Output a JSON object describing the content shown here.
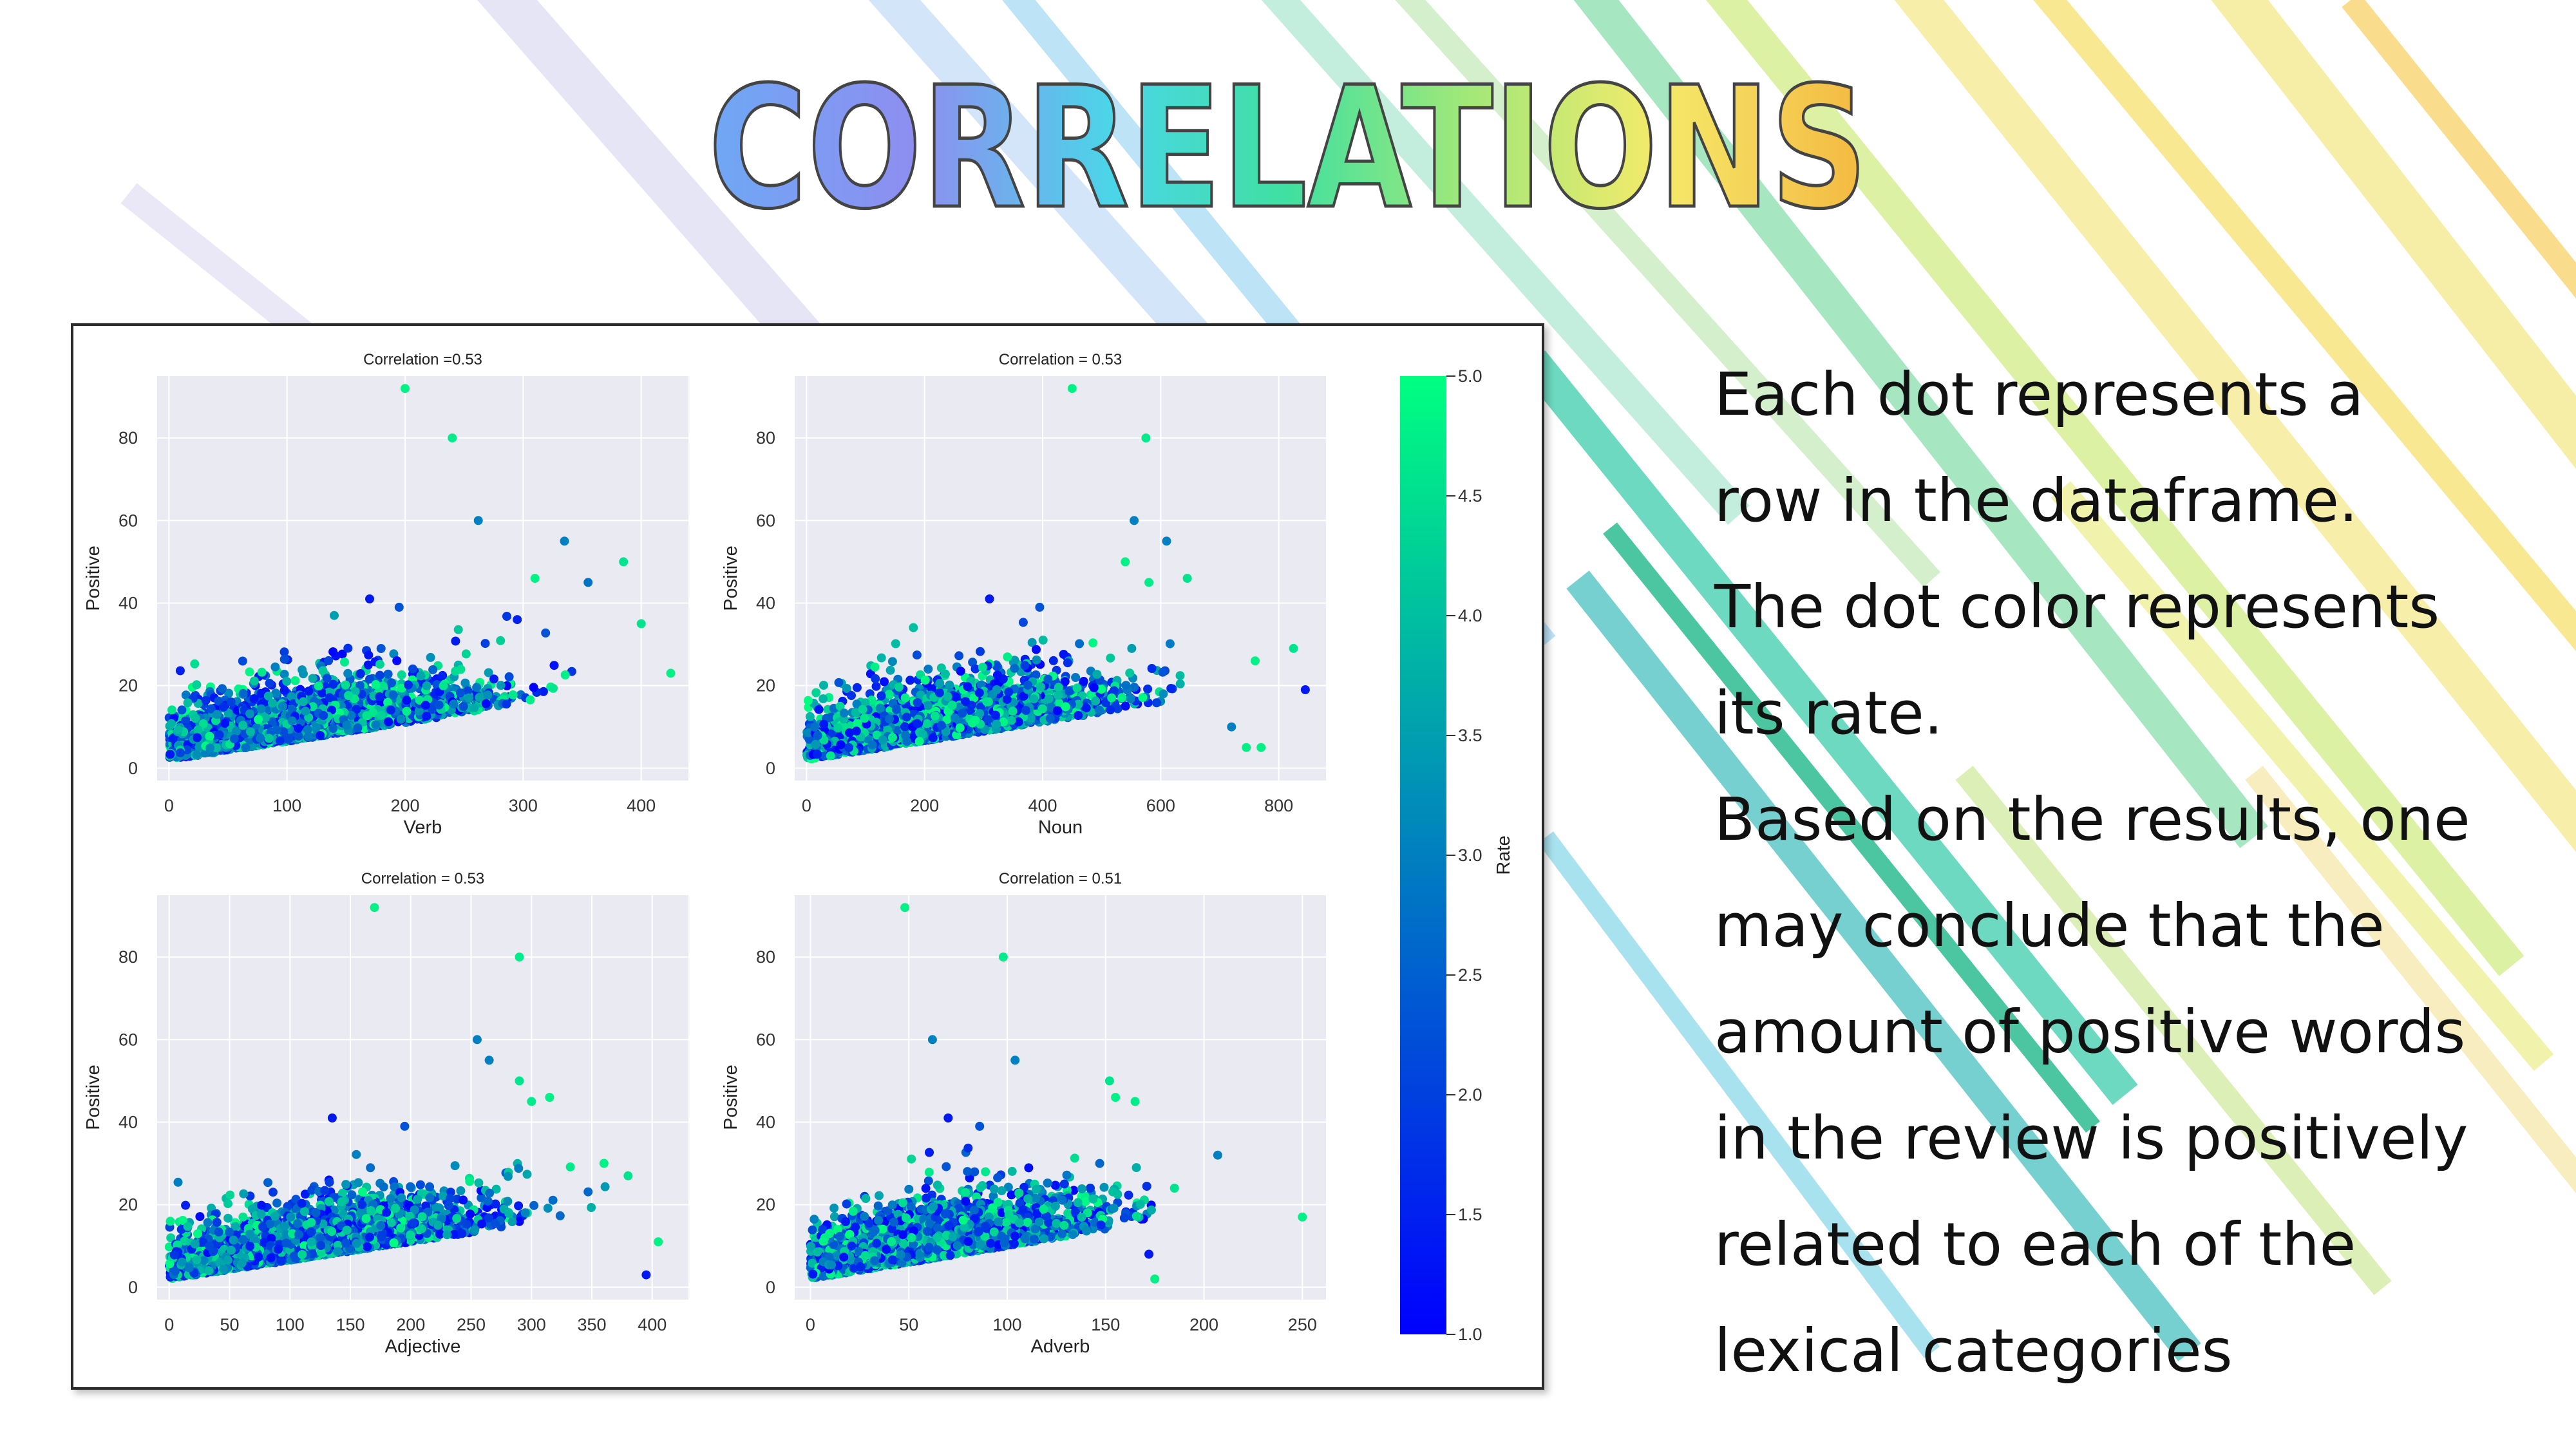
{
  "slide": {
    "title": "CORRELATIONS",
    "description_lines": [
      "Each dot represents a",
      "row in the dataframe.",
      "The dot color represents",
      "its rate.",
      "Based on the results, one",
      "may conclude that the",
      "amount of positive words",
      "in the review is positively",
      "related to each of the",
      "lexical categories"
    ]
  },
  "chart_data": [
    {
      "type": "scatter",
      "title": "Correlation =0.53",
      "xlabel": "Verb",
      "ylabel": "Positive",
      "xlim": [
        -10,
        440
      ],
      "ylim": [
        -3,
        95
      ],
      "xticks": [
        0,
        100,
        200,
        300,
        400
      ],
      "yticks": [
        0,
        20,
        40,
        60,
        80
      ],
      "grid": true,
      "outliers": [
        [
          200,
          92,
          4.8
        ],
        [
          240,
          80,
          4.7
        ],
        [
          262,
          60,
          3.0
        ],
        [
          335,
          55,
          3.0
        ],
        [
          355,
          45,
          2.8
        ],
        [
          385,
          50,
          4.6
        ],
        [
          310,
          46,
          4.8
        ],
        [
          400,
          35,
          4.6
        ],
        [
          425,
          23,
          4.8
        ],
        [
          295,
          36,
          1.5
        ],
        [
          170,
          41,
          1.4
        ],
        [
          195,
          39,
          2.3
        ],
        [
          140,
          37,
          3.5
        ]
      ],
      "cluster": {
        "count": 2600,
        "x_mean": 120,
        "x_sd": 70,
        "x_max": 420,
        "y_base": 2,
        "y_per_x": 0.045,
        "y_sd": 5,
        "seed": 11
      }
    },
    {
      "type": "scatter",
      "title": "Correlation = 0.53",
      "xlabel": "Noun",
      "ylabel": "Positive",
      "xlim": [
        -20,
        880
      ],
      "ylim": [
        -3,
        95
      ],
      "xticks": [
        0,
        200,
        400,
        600,
        800
      ],
      "yticks": [
        0,
        20,
        40,
        60,
        80
      ],
      "grid": true,
      "outliers": [
        [
          450,
          92,
          4.8
        ],
        [
          575,
          80,
          4.7
        ],
        [
          555,
          60,
          3.0
        ],
        [
          610,
          55,
          3.0
        ],
        [
          645,
          46,
          4.6
        ],
        [
          540,
          50,
          4.8
        ],
        [
          580,
          45,
          4.7
        ],
        [
          760,
          26,
          4.8
        ],
        [
          825,
          29,
          4.6
        ],
        [
          845,
          19,
          1.4
        ],
        [
          310,
          41,
          1.4
        ],
        [
          395,
          39,
          2.3
        ],
        [
          770,
          5,
          4.8
        ],
        [
          745,
          5,
          4.8
        ],
        [
          720,
          10,
          3.0
        ]
      ],
      "cluster": {
        "count": 2600,
        "x_mean": 230,
        "x_sd": 135,
        "x_max": 800,
        "y_base": 2,
        "y_per_x": 0.023,
        "y_sd": 5,
        "seed": 23
      }
    },
    {
      "type": "scatter",
      "title": "Correlation = 0.53",
      "xlabel": "Adjective",
      "ylabel": "Positive",
      "xlim": [
        -10,
        430
      ],
      "ylim": [
        -3,
        95
      ],
      "xticks": [
        0,
        50,
        100,
        150,
        200,
        250,
        300,
        350,
        400
      ],
      "yticks": [
        0,
        20,
        40,
        60,
        80
      ],
      "grid": true,
      "outliers": [
        [
          170,
          92,
          4.8
        ],
        [
          290,
          80,
          4.7
        ],
        [
          255,
          60,
          3.0
        ],
        [
          265,
          55,
          3.0
        ],
        [
          290,
          50,
          4.6
        ],
        [
          315,
          46,
          4.8
        ],
        [
          300,
          45,
          4.7
        ],
        [
          360,
          30,
          4.8
        ],
        [
          380,
          27,
          4.6
        ],
        [
          405,
          11,
          4.8
        ],
        [
          135,
          41,
          1.4
        ],
        [
          195,
          39,
          2.3
        ],
        [
          395,
          3,
          1.4
        ]
      ],
      "cluster": {
        "count": 2600,
        "x_mean": 115,
        "x_sd": 70,
        "x_max": 400,
        "y_base": 2,
        "y_per_x": 0.045,
        "y_sd": 5,
        "seed": 37
      }
    },
    {
      "type": "scatter",
      "title": "Correlation = 0.51",
      "xlabel": "Adverb",
      "ylabel": "Positive",
      "xlim": [
        -8,
        262
      ],
      "ylim": [
        -3,
        95
      ],
      "xticks": [
        0,
        50,
        100,
        150,
        200,
        250
      ],
      "yticks": [
        0,
        20,
        40,
        60,
        80
      ],
      "grid": true,
      "outliers": [
        [
          48,
          92,
          4.8
        ],
        [
          98,
          80,
          4.7
        ],
        [
          62,
          60,
          3.0
        ],
        [
          104,
          55,
          3.0
        ],
        [
          152,
          50,
          4.6
        ],
        [
          155,
          46,
          4.8
        ],
        [
          165,
          45,
          4.7
        ],
        [
          207,
          32,
          3.0
        ],
        [
          250,
          17,
          4.8
        ],
        [
          185,
          24,
          4.6
        ],
        [
          70,
          41,
          1.4
        ],
        [
          86,
          39,
          2.3
        ],
        [
          175,
          2,
          4.8
        ],
        [
          172,
          8,
          1.4
        ]
      ],
      "cluster": {
        "count": 2600,
        "x_mean": 65,
        "x_sd": 40,
        "x_max": 175,
        "y_base": 2,
        "y_per_x": 0.08,
        "y_sd": 5,
        "seed": 53
      }
    }
  ],
  "colorbar": {
    "label": "Rate",
    "range": [
      1.0,
      5.0
    ],
    "ticks": [
      "1.0",
      "1.5",
      "2.0",
      "2.5",
      "3.0",
      "3.5",
      "4.0",
      "4.5",
      "5.0"
    ],
    "colormap": "winter",
    "color_low": "#0000ff",
    "color_high": "#00ff80"
  },
  "colors": {
    "plot_background": "#eaeaf2",
    "grid": "#ffffff"
  }
}
